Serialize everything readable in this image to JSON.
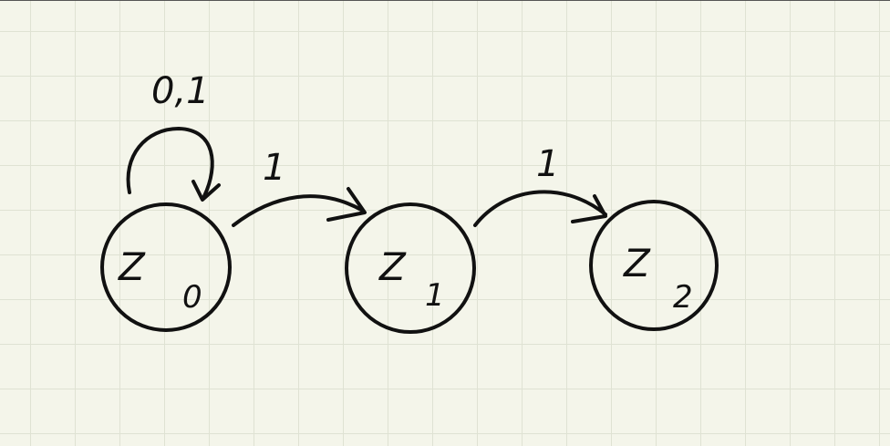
{
  "diagram": {
    "states": [
      {
        "id": "z0",
        "name": "Z",
        "subscript": "0"
      },
      {
        "id": "z1",
        "name": "Z",
        "subscript": "1"
      },
      {
        "id": "z2",
        "name": "Z",
        "subscript": "2"
      }
    ],
    "transitions": [
      {
        "from": "z0",
        "to": "z0",
        "label": "0,1"
      },
      {
        "from": "z0",
        "to": "z1",
        "label": "1"
      },
      {
        "from": "z1",
        "to": "z2",
        "label": "1"
      }
    ]
  }
}
